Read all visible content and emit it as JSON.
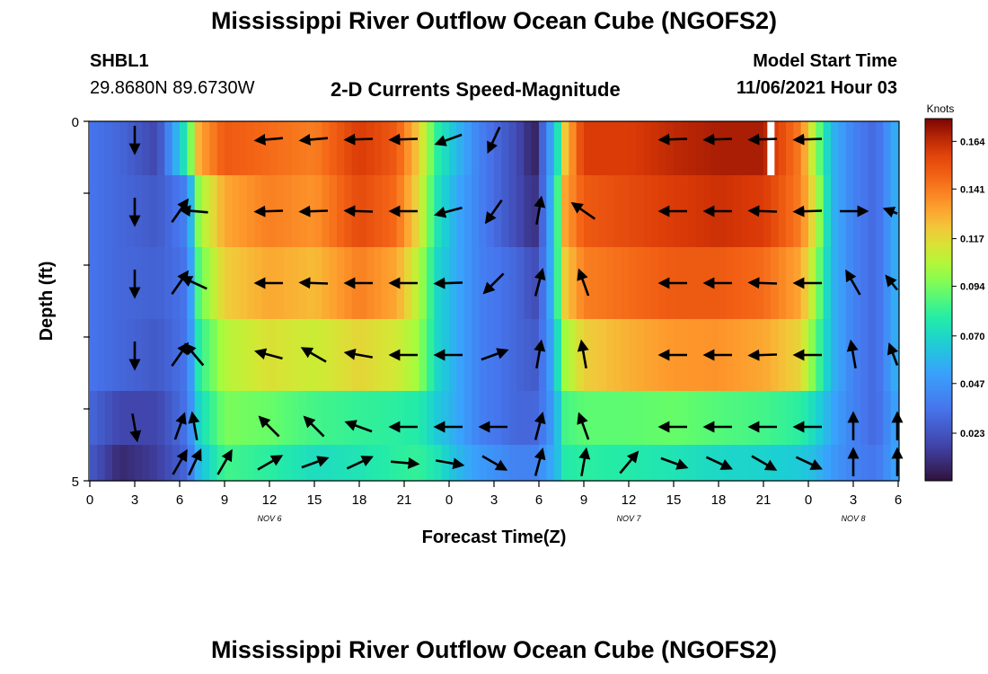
{
  "header": {
    "title": "Mississippi River Outflow Ocean Cube (NGOFS2)",
    "station": "SHBL1",
    "coordinates": "29.8680N  89.6730W",
    "model_start_label": "Model Start Time",
    "model_start_value": "11/06/2021 Hour 03"
  },
  "footer": {
    "title": "Mississippi River Outflow Ocean Cube (NGOFS2)"
  },
  "chart_data": {
    "type": "heatmap",
    "title": "2-D Currents Speed-Magnitude",
    "xlabel": "Forecast Time(Z)",
    "ylabel": "Depth (ft)",
    "x_tick_labels": [
      "0",
      "3",
      "6",
      "9",
      "12",
      "15",
      "18",
      "21",
      "0",
      "3",
      "6",
      "9",
      "12",
      "15",
      "18",
      "21",
      "0",
      "3",
      "6"
    ],
    "date_labels": [
      {
        "hour": 12,
        "text": "NOV 6"
      },
      {
        "hour": 36,
        "text": "NOV 7"
      },
      {
        "hour": 51,
        "text": "NOV 8"
      }
    ],
    "x_range_hours": [
      0,
      54
    ],
    "depth_range_ft": [
      0,
      5
    ],
    "y_tick_labels": [
      {
        "depth": 0,
        "text": "0"
      },
      {
        "depth": 1,
        "text": ""
      },
      {
        "depth": 2,
        "text": ""
      },
      {
        "depth": 3,
        "text": ""
      },
      {
        "depth": 4,
        "text": ""
      },
      {
        "depth": 5,
        "text": "5"
      }
    ],
    "depth_levels": [
      0.25,
      1.25,
      2.25,
      3.25,
      4.25,
      4.75
    ],
    "speed_hour_points": [
      0,
      2,
      4.5,
      6.5,
      7.3,
      9,
      12,
      15,
      18,
      20.5,
      22,
      23.2,
      24.5,
      26,
      28.5,
      29.7,
      30.5,
      31.2,
      31.7,
      33,
      36,
      39,
      42,
      45,
      47.5,
      48.5,
      49.5,
      51,
      52.5,
      54
    ],
    "speed_knots": [
      [
        0.035,
        0.03,
        0.018,
        0.08,
        0.13,
        0.15,
        0.145,
        0.14,
        0.16,
        0.15,
        0.12,
        0.08,
        0.06,
        0.04,
        0.02,
        0.005,
        0.04,
        0.07,
        0.12,
        0.16,
        0.16,
        0.165,
        0.168,
        0.168,
        0.14,
        0.1,
        0.06,
        0.04,
        0.03,
        0.06
      ],
      [
        0.035,
        0.03,
        0.025,
        0.04,
        0.1,
        0.13,
        0.14,
        0.135,
        0.155,
        0.145,
        0.115,
        0.075,
        0.055,
        0.04,
        0.02,
        0.01,
        0.04,
        0.08,
        0.13,
        0.15,
        0.155,
        0.16,
        0.163,
        0.16,
        0.14,
        0.11,
        0.06,
        0.04,
        0.03,
        0.06
      ],
      [
        0.035,
        0.03,
        0.028,
        0.035,
        0.09,
        0.12,
        0.13,
        0.125,
        0.14,
        0.13,
        0.105,
        0.07,
        0.055,
        0.04,
        0.03,
        0.02,
        0.04,
        0.08,
        0.12,
        0.14,
        0.145,
        0.15,
        0.15,
        0.145,
        0.13,
        0.1,
        0.06,
        0.04,
        0.03,
        0.06
      ],
      [
        0.035,
        0.03,
        0.025,
        0.035,
        0.08,
        0.105,
        0.115,
        0.11,
        0.118,
        0.112,
        0.1,
        0.07,
        0.055,
        0.04,
        0.03,
        0.025,
        0.04,
        0.07,
        0.1,
        0.12,
        0.128,
        0.134,
        0.135,
        0.13,
        0.118,
        0.09,
        0.06,
        0.04,
        0.03,
        0.06
      ],
      [
        0.03,
        0.018,
        0.018,
        0.035,
        0.07,
        0.095,
        0.092,
        0.085,
        0.082,
        0.08,
        0.078,
        0.065,
        0.055,
        0.04,
        0.03,
        0.03,
        0.04,
        0.06,
        0.085,
        0.09,
        0.09,
        0.092,
        0.088,
        0.085,
        0.08,
        0.07,
        0.055,
        0.04,
        0.03,
        0.055
      ],
      [
        0.025,
        0.008,
        0.015,
        0.03,
        0.06,
        0.085,
        0.08,
        0.072,
        0.075,
        0.08,
        0.082,
        0.075,
        0.06,
        0.05,
        0.04,
        0.04,
        0.05,
        0.06,
        0.078,
        0.08,
        0.078,
        0.075,
        0.07,
        0.068,
        0.065,
        0.06,
        0.05,
        0.04,
        0.035,
        0.055
      ]
    ],
    "missing_data_hours": [
      45.5
    ],
    "vector_hours": [
      3,
      6,
      7,
      9,
      12,
      15,
      18,
      21,
      24,
      27,
      30,
      33,
      36,
      39,
      42,
      45,
      48,
      51,
      54
    ],
    "vector_directions_deg": [
      [
        180,
        null,
        null,
        null,
        265,
        265,
        268,
        268,
        250,
        205,
        null,
        null,
        null,
        268,
        268,
        268,
        268,
        null,
        null
      ],
      [
        180,
        35,
        275,
        null,
        268,
        268,
        272,
        270,
        255,
        215,
        10,
        305,
        null,
        270,
        270,
        272,
        268,
        90,
        280
      ],
      [
        180,
        35,
        295,
        null,
        270,
        272,
        270,
        270,
        268,
        225,
        15,
        340,
        null,
        270,
        270,
        272,
        270,
        330,
        300
      ],
      [
        180,
        35,
        320,
        null,
        285,
        300,
        280,
        270,
        270,
        70,
        10,
        350,
        null,
        270,
        270,
        268,
        270,
        350,
        320
      ],
      [
        170,
        20,
        350,
        null,
        315,
        315,
        290,
        270,
        270,
        270,
        15,
        340,
        null,
        270,
        270,
        270,
        270,
        0,
        0
      ],
      [
        null,
        30,
        25,
        30,
        60,
        70,
        65,
        95,
        100,
        120,
        15,
        10,
        40,
        110,
        115,
        120,
        115,
        0,
        0
      ]
    ],
    "colorbar": {
      "unit": "Knots",
      "range": [
        0,
        0.175
      ],
      "tick_values": [
        0.023,
        0.047,
        0.07,
        0.094,
        0.117,
        0.141,
        0.164
      ],
      "tick_labels": [
        "0.023",
        "0.047",
        "0.070",
        "0.094",
        "0.117",
        "0.141",
        "0.164"
      ]
    }
  }
}
